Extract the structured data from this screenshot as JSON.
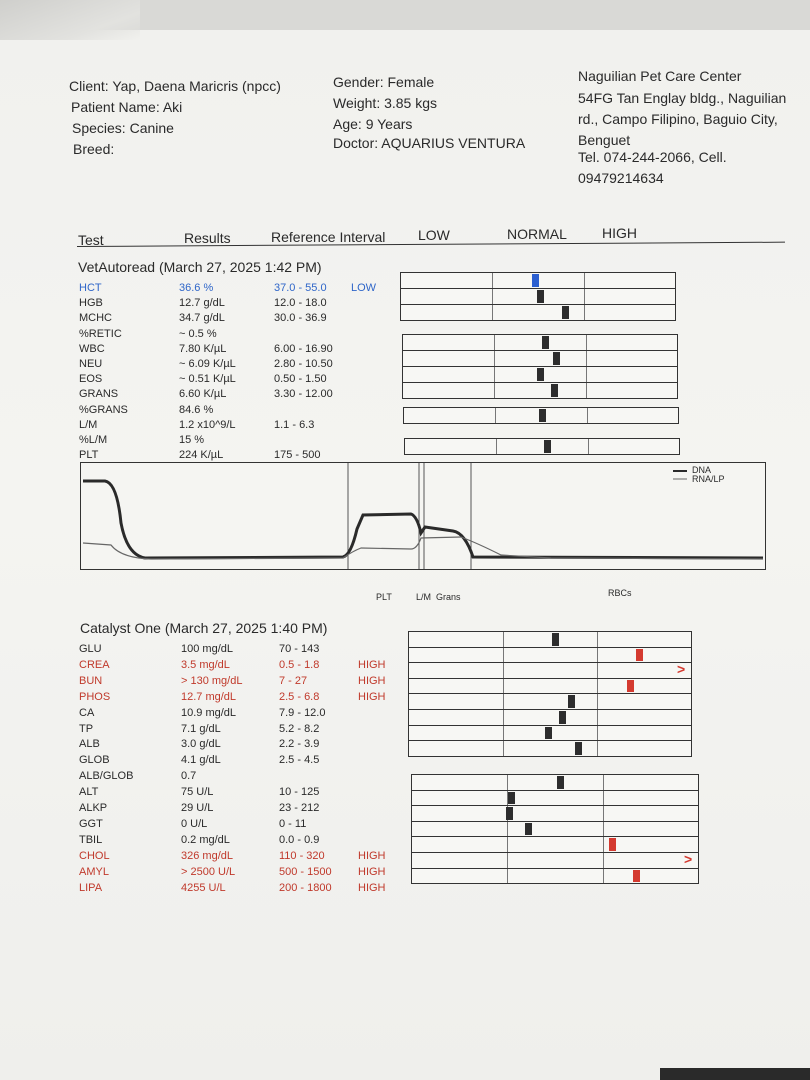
{
  "header": {
    "client": "Client: Yap, Daena Maricris (npcc)",
    "patient": "Patient Name: Aki",
    "species": "Species: Canine",
    "breed": "Breed:",
    "gender": "Gender: Female",
    "weight": "Weight: 3.85 kgs",
    "age": "Age: 9 Years",
    "doctor": "Doctor: AQUARIUS VENTURA",
    "clinic_lines": [
      "Naguilian Pet Care Center",
      "54FG Tan Englay bldg., Naguilian",
      "rd., Campo Filipino, Baguio City,",
      "Benguet",
      "Tel. 074-244-2066,        Cell.",
      "09479214634"
    ]
  },
  "columns": {
    "test": "Test",
    "results": "Results",
    "reference": "Reference Interval",
    "low": "LOW",
    "normal": "NORMAL",
    "high": "HIGH"
  },
  "vetautoread": {
    "title": "VetAutoread (March 27, 2025 1:42 PM)",
    "rows": [
      {
        "test": "HCT",
        "result": "36.6 %",
        "ref": "37.0 - 55.0",
        "flag": "LOW",
        "color": "#2f66c9",
        "level": 0.47,
        "bar": 1
      },
      {
        "test": "HGB",
        "result": "12.7 g/dL",
        "ref": "12.0 - 18.0",
        "flag": "",
        "level": 0.52,
        "bar": 1
      },
      {
        "test": "MCHC",
        "result": "34.7 g/dL",
        "ref": "30.0 - 36.9",
        "flag": "",
        "level": 0.8,
        "bar": 1
      },
      {
        "test": "%RETIC",
        "result": "~ 0.5 %",
        "ref": "",
        "flag": "",
        "bar": 0
      },
      {
        "test": "WBC",
        "result": "7.80 K/µL",
        "ref": "6.00 - 16.90",
        "flag": "",
        "level": 0.55,
        "bar": 2
      },
      {
        "test": "NEU",
        "result": "~ 6.09 K/µL",
        "ref": "2.80 - 10.50",
        "flag": "",
        "level": 0.68,
        "bar": 2
      },
      {
        "test": "EOS",
        "result": "~ 0.51 K/µL",
        "ref": "0.50 - 1.50",
        "flag": "",
        "level": 0.5,
        "bar": 2
      },
      {
        "test": "GRANS",
        "result": "6.60 K/µL",
        "ref": "3.30 - 12.00",
        "flag": "",
        "level": 0.65,
        "bar": 2
      },
      {
        "test": "%GRANS",
        "result": "84.6 %",
        "ref": "",
        "flag": "",
        "bar": 0
      },
      {
        "test": "L/M",
        "result": "1.2 x10^9/L",
        "ref": "1.1 - 6.3",
        "flag": "",
        "level": 0.51,
        "bar": 3
      },
      {
        "test": "%L/M",
        "result": "15 %",
        "ref": "",
        "flag": "",
        "bar": 0
      },
      {
        "test": "PLT",
        "result": "224 K/µL",
        "ref": "175 - 500",
        "flag": "",
        "level": 0.55,
        "bar": 4
      }
    ],
    "histogram": {
      "legend": [
        "DNA",
        "RNA/LP"
      ],
      "labels": [
        "PLT",
        "L/M",
        "Grans",
        "RBCs"
      ]
    }
  },
  "catalyst": {
    "title": "Catalyst One (March 27, 2025 1:40 PM)",
    "rows": [
      {
        "test": "GLU",
        "result": "100 mg/dL",
        "ref": "70 - 143",
        "flag": "",
        "level": 0.55,
        "bar": 1
      },
      {
        "test": "CREA",
        "result": "3.5 mg/dL",
        "ref": "0.5 - 1.8",
        "flag": "HIGH",
        "color": "#c0392b",
        "level": 1.45,
        "bar": 1
      },
      {
        "test": "BUN",
        "result": "> 130 mg/dL",
        "ref": "7 - 27",
        "flag": "HIGH",
        "color": "#c0392b",
        "level": 2,
        "bar": 1
      },
      {
        "test": "PHOS",
        "result": "12.7 mg/dL",
        "ref": "2.5 - 6.8",
        "flag": "HIGH",
        "color": "#c0392b",
        "level": 1.35,
        "bar": 1
      },
      {
        "test": "CA",
        "result": "10.9 mg/dL",
        "ref": "7.9 - 12.0",
        "flag": "",
        "level": 0.72,
        "bar": 1
      },
      {
        "test": "TP",
        "result": "7.1 g/dL",
        "ref": "5.2 - 8.2",
        "flag": "",
        "level": 0.63,
        "bar": 1
      },
      {
        "test": "ALB",
        "result": "3.0 g/dL",
        "ref": "2.2 - 3.9",
        "flag": "",
        "level": 0.48,
        "bar": 1
      },
      {
        "test": "GLOB",
        "result": "4.1 g/dL",
        "ref": "2.5 - 4.5",
        "flag": "",
        "level": 0.8,
        "bar": 1
      },
      {
        "test": "ALB/GLOB",
        "result": "0.7",
        "ref": "",
        "flag": "",
        "bar": 0
      },
      {
        "test": "ALT",
        "result": "75 U/L",
        "ref": "10 - 125",
        "flag": "",
        "level": 0.55,
        "bar": 2
      },
      {
        "test": "ALKP",
        "result": "29 U/L",
        "ref": "23 - 212",
        "flag": "",
        "level": 0.04,
        "bar": 2
      },
      {
        "test": "GGT",
        "result": "0 U/L",
        "ref": "0 - 11",
        "flag": "",
        "level": 0.02,
        "bar": 2
      },
      {
        "test": "TBIL",
        "result": "0.2 mg/dL",
        "ref": "0.0 - 0.9",
        "flag": "",
        "level": 0.22,
        "bar": 2
      },
      {
        "test": "CHOL",
        "result": "326 mg/dL",
        "ref": "110 - 320",
        "flag": "HIGH",
        "color": "#c0392b",
        "level": 1.1,
        "bar": 2
      },
      {
        "test": "AMYL",
        "result": "> 2500 U/L",
        "ref": "500 - 1500",
        "flag": "HIGH",
        "color": "#c0392b",
        "level": 2,
        "bar": 2
      },
      {
        "test": "LIPA",
        "result": "4255 U/L",
        "ref": "200 - 1800",
        "flag": "HIGH",
        "color": "#c0392b",
        "level": 1.35,
        "bar": 2
      }
    ]
  }
}
